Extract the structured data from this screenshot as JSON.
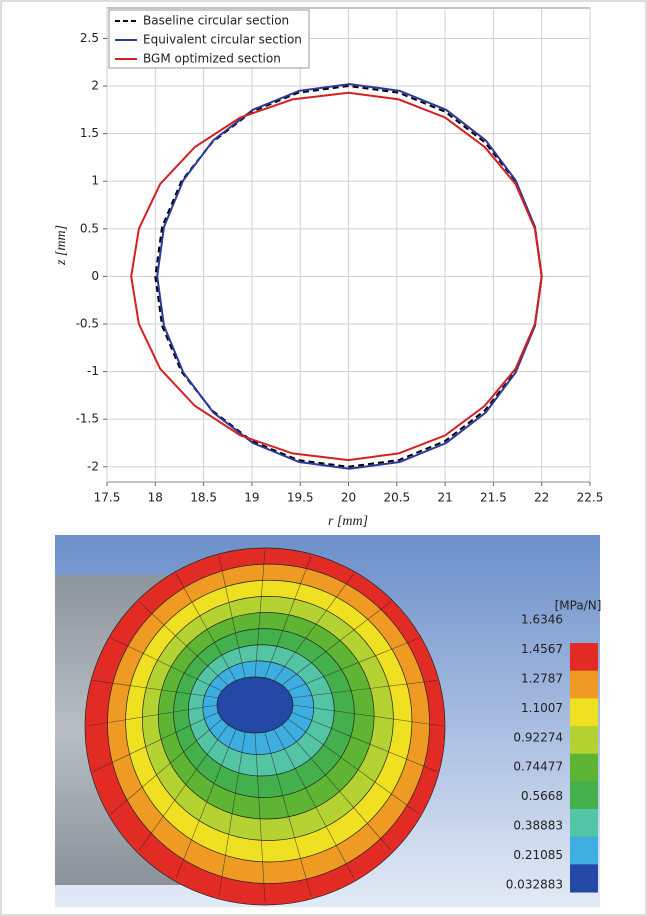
{
  "chart_data": [
    {
      "type": "line",
      "xlabel": "r [mm]",
      "ylabel": "z [mm]",
      "xlim": [
        17.5,
        22.5
      ],
      "ylim": [
        -2.16,
        2.82
      ],
      "xticks": [
        17.5,
        18,
        18.5,
        19,
        19.5,
        20,
        20.5,
        21,
        21.5,
        22,
        22.5
      ],
      "yticks": [
        -2,
        -1.5,
        -1,
        -0.5,
        0,
        0.5,
        1,
        1.5,
        2,
        2.5
      ],
      "grid": true,
      "legend": "upper left",
      "series": [
        {
          "name": "Baseline circular section",
          "color": "#000000",
          "dash": true,
          "x": [
            22,
            21.93,
            21.73,
            21.41,
            21,
            20.52,
            20,
            19.48,
            19,
            18.59,
            18.27,
            18.07,
            18,
            18.07,
            18.27,
            18.59,
            19,
            19.48,
            20,
            20.52,
            21,
            21.41,
            21.73,
            21.93,
            22
          ],
          "values": [
            0,
            0.52,
            1,
            1.41,
            1.73,
            1.93,
            2,
            1.93,
            1.73,
            1.41,
            1,
            0.52,
            0,
            -0.52,
            -1,
            -1.41,
            -1.73,
            -1.93,
            -2,
            -1.93,
            -1.73,
            -1.41,
            -1,
            -0.52,
            0
          ]
        },
        {
          "name": "Equivalent circular section",
          "color": "#2b3a9a",
          "dash": false,
          "x": [
            22,
            21.93,
            21.73,
            21.42,
            21.01,
            20.53,
            20.01,
            19.49,
            19.01,
            18.6,
            18.29,
            18.09,
            18.02,
            18.09,
            18.29,
            18.6,
            19.01,
            19.49,
            20.01,
            20.53,
            21.01,
            21.42,
            21.73,
            21.93,
            22
          ],
          "values": [
            0,
            0.52,
            1.01,
            1.43,
            1.75,
            1.95,
            2.02,
            1.95,
            1.75,
            1.43,
            1.01,
            0.52,
            0,
            -0.52,
            -1.01,
            -1.43,
            -1.75,
            -1.95,
            -2.02,
            -1.95,
            -1.75,
            -1.43,
            -1.01,
            -0.52,
            0
          ]
        },
        {
          "name": "BGM optimized section",
          "color": "#d42020",
          "dash": false,
          "x": [
            22,
            21.93,
            21.73,
            21.41,
            21,
            20.52,
            20,
            19.42,
            18.88,
            18.41,
            18.05,
            17.83,
            17.75,
            17.83,
            18.05,
            18.41,
            18.88,
            19.42,
            20,
            20.52,
            21,
            21.41,
            21.73,
            21.93,
            22
          ],
          "values": [
            0,
            0.5,
            0.97,
            1.36,
            1.67,
            1.86,
            1.93,
            1.86,
            1.67,
            1.36,
            0.97,
            0.5,
            0,
            -0.5,
            -0.97,
            -1.36,
            -1.67,
            -1.86,
            -1.93,
            -1.86,
            -1.67,
            -1.36,
            -0.97,
            -0.5,
            0
          ]
        }
      ]
    },
    {
      "type": "contour",
      "colorbar_title": "[MPa/N]",
      "colorbar_ticks": [
        1.6346,
        1.4567,
        1.2787,
        1.1007,
        0.92274,
        0.74477,
        0.5668,
        0.38883,
        0.21085,
        0.032883
      ],
      "colors": [
        "#e22b24",
        "#ef9a23",
        "#efe021",
        "#b5d233",
        "#5db533",
        "#43b04c",
        "#53c4a4",
        "#3eaee0",
        "#2348a6"
      ]
    }
  ]
}
